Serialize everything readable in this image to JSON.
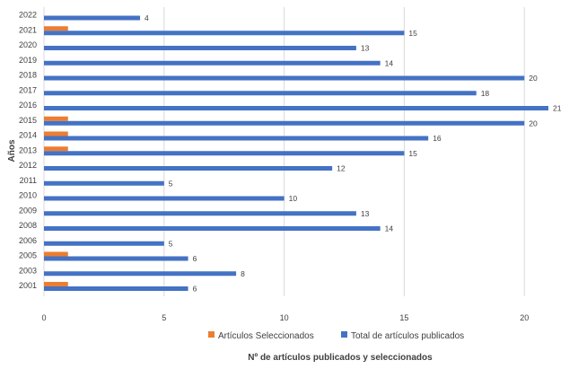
{
  "chart_data": {
    "type": "bar",
    "orientation": "horizontal",
    "categories": [
      "2001",
      "2003",
      "2005",
      "2006",
      "2008",
      "2009",
      "2010",
      "2011",
      "2012",
      "2013",
      "2014",
      "2015",
      "2016",
      "2017",
      "2018",
      "2019",
      "2020",
      "2021",
      "2022"
    ],
    "series": [
      {
        "name": "Artículos Seleccionados",
        "color": "#ED7D31",
        "values": [
          1,
          0,
          1,
          0,
          0,
          0,
          0,
          0,
          0,
          1,
          1,
          1,
          0,
          0,
          0,
          0,
          0,
          1,
          0
        ],
        "show_labels": false
      },
      {
        "name": "Total de artículos publicados",
        "color": "#4472C4",
        "values": [
          6,
          8,
          6,
          5,
          14,
          13,
          10,
          5,
          12,
          15,
          16,
          20,
          21,
          18,
          20,
          14,
          13,
          15,
          4
        ],
        "show_labels": true
      }
    ],
    "xlabel": "Nº de artículos publicados y seleccionados",
    "ylabel": "Años",
    "xlim": [
      0,
      21
    ],
    "xticks": [
      0,
      5,
      10,
      15,
      20
    ],
    "grid": true,
    "legend_position": "bottom"
  }
}
